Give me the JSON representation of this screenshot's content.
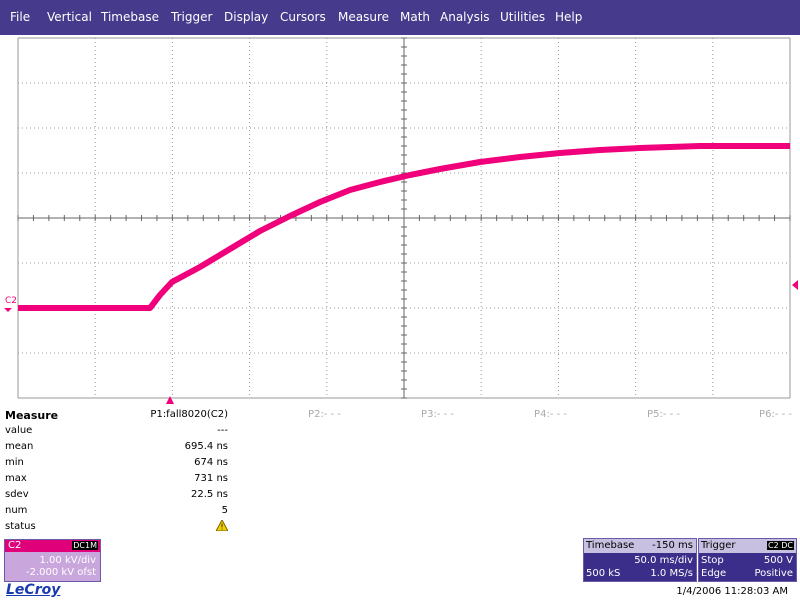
{
  "menu": [
    "File",
    "Vertical",
    "Timebase",
    "Trigger",
    "Display",
    "Cursors",
    "Measure",
    "Math",
    "Analysis",
    "Utilities",
    "Help"
  ],
  "trace_label": "C2",
  "measure": {
    "title": "Measure",
    "params": [
      "P1:fall8020(C2)",
      "P2:- - -",
      "P3:- - -",
      "P4:- - -",
      "P5:- - -",
      "P6:- - -"
    ],
    "rows": [
      {
        "label": "value",
        "value": "---"
      },
      {
        "label": "mean",
        "value": "695.4 ns"
      },
      {
        "label": "min",
        "value": "674 ns"
      },
      {
        "label": "max",
        "value": "731 ns"
      },
      {
        "label": "sdev",
        "value": "22.5 ns"
      },
      {
        "label": "num",
        "value": "5"
      },
      {
        "label": "status"
      }
    ]
  },
  "channel": {
    "name": "C2",
    "coupling": "DC1M",
    "scale": "1.00 kV/div",
    "offset": "-2.000 kV ofst"
  },
  "timebase": {
    "title": "Timebase",
    "delay": "-150 ms",
    "scale": "50.0 ms/div",
    "samples": "500 kS",
    "rate": "1.0 MS/s"
  },
  "trigger": {
    "title": "Trigger",
    "source": "C2 DC",
    "mode": "Stop",
    "level": "500 V",
    "type": "Edge",
    "slope": "Positive"
  },
  "footer": {
    "logo": "LeCroy",
    "timestamp": "1/4/2006 11:28:03 AM"
  }
}
